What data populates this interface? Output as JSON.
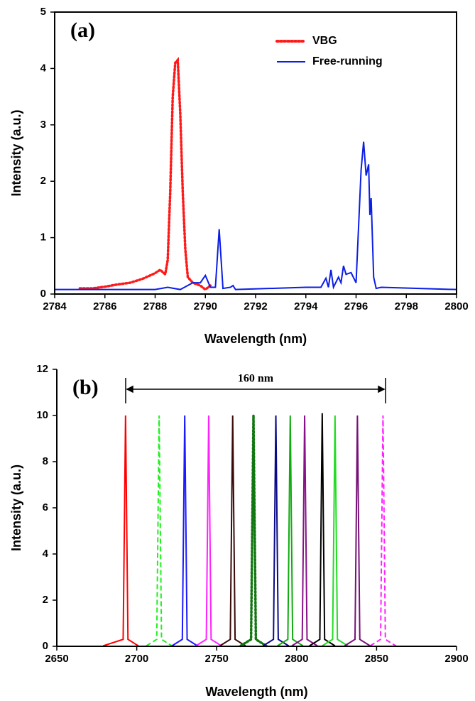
{
  "chart_data": [
    {
      "type": "line",
      "panel_label": "(a)",
      "xlabel": "Wavelength (nm)",
      "ylabel": "Intensity (a.u.)",
      "xlim": [
        2784,
        2800
      ],
      "xticks": [
        2784,
        2786,
        2788,
        2790,
        2792,
        2794,
        2796,
        2798,
        2800
      ],
      "ylim": [
        0,
        5
      ],
      "yticks": [
        0,
        1,
        2,
        3,
        4,
        5
      ],
      "box": true,
      "legend": "upper right",
      "series": [
        {
          "name": "VBG",
          "color": "#ff1a1a",
          "style": "dotted",
          "x": [
            2785,
            2785.5,
            2786,
            2786.5,
            2787,
            2787.5,
            2788,
            2788.2,
            2788.4,
            2788.5,
            2788.6,
            2788.7,
            2788.8,
            2788.9,
            2789.0,
            2789.1,
            2789.2,
            2789.3,
            2789.5,
            2789.8,
            2790,
            2790.2
          ],
          "values": [
            0.1,
            0.1,
            0.13,
            0.17,
            0.2,
            0.27,
            0.37,
            0.43,
            0.35,
            0.6,
            1.8,
            3.5,
            4.1,
            4.15,
            3.2,
            1.8,
            0.8,
            0.3,
            0.2,
            0.15,
            0.08,
            0.15
          ]
        },
        {
          "name": "Free-running",
          "color": "#0a1ee6",
          "style": "solid",
          "x": [
            2784,
            2788,
            2788.5,
            2789,
            2789.5,
            2789.8,
            2790,
            2790.2,
            2790.4,
            2790.55,
            2790.7,
            2791,
            2791.1,
            2791.2,
            2794,
            2794.6,
            2794.8,
            2794.9,
            2795,
            2795.1,
            2795.3,
            2795.4,
            2795.5,
            2795.6,
            2795.8,
            2796,
            2796.2,
            2796.3,
            2796.4,
            2796.5,
            2796.55,
            2796.6,
            2796.7,
            2796.8,
            2797,
            2800
          ],
          "values": [
            0.08,
            0.08,
            0.12,
            0.08,
            0.2,
            0.2,
            0.33,
            0.12,
            0.12,
            1.15,
            0.1,
            0.12,
            0.15,
            0.08,
            0.12,
            0.12,
            0.28,
            0.12,
            0.43,
            0.12,
            0.3,
            0.2,
            0.5,
            0.35,
            0.38,
            0.2,
            2.2,
            2.7,
            2.1,
            2.3,
            1.4,
            1.7,
            0.3,
            0.1,
            0.12,
            0.08
          ]
        }
      ]
    },
    {
      "type": "line",
      "panel_label": "(b)",
      "annotation": "160 nm",
      "xlabel": "Wavelength (nm)",
      "ylabel": "Intensity (a.u.)",
      "xlim": [
        2650,
        2900
      ],
      "xticks": [
        2650,
        2700,
        2750,
        2800,
        2850,
        2900
      ],
      "ylim": [
        0,
        12
      ],
      "yticks": [
        0,
        2,
        4,
        6,
        8,
        10,
        12
      ],
      "box": false,
      "series": [
        {
          "color": "#ff0000",
          "style": "solid",
          "x": [
            2679,
            2691.5,
            2693,
            2694.5,
            2701
          ],
          "values": [
            0.02,
            0.3,
            10,
            0.3,
            0.02
          ]
        },
        {
          "color": "#22ee22",
          "style": "dashed",
          "x": [
            2706,
            2712.5,
            2714,
            2715.5,
            2722
          ],
          "values": [
            0.02,
            0.3,
            10,
            0.3,
            0.02
          ]
        },
        {
          "color": "#1a1aff",
          "style": "solid",
          "x": [
            2722,
            2728.5,
            2730,
            2731.5,
            2738
          ],
          "values": [
            0.02,
            0.3,
            10,
            0.3,
            0.02
          ]
        },
        {
          "color": "#ff22ff",
          "style": "solid",
          "x": [
            2737,
            2743.5,
            2745,
            2746.5,
            2753
          ],
          "values": [
            0.02,
            0.3,
            10,
            0.3,
            0.02
          ]
        },
        {
          "color": "#3a0a0a",
          "style": "solid",
          "x": [
            2752,
            2758.5,
            2760,
            2761.5,
            2768
          ],
          "values": [
            0.02,
            0.3,
            10,
            0.3,
            0.02
          ]
        },
        {
          "color": "#117711",
          "style": "dotted",
          "x": [
            2765,
            2771.5,
            2773,
            2774.5,
            2781
          ],
          "values": [
            0.02,
            0.3,
            10,
            0.3,
            0.02
          ]
        },
        {
          "color": "#0a0a88",
          "style": "solid",
          "x": [
            2779,
            2785.5,
            2787,
            2788.5,
            2795
          ],
          "values": [
            0.02,
            0.3,
            10,
            0.3,
            0.02
          ]
        },
        {
          "color": "#11aa11",
          "style": "solid",
          "x": [
            2788,
            2794.5,
            2796,
            2797.5,
            2804
          ],
          "values": [
            0.02,
            0.3,
            10,
            0.3,
            0.02
          ]
        },
        {
          "color": "#881188",
          "style": "solid",
          "x": [
            2797,
            2803.5,
            2805,
            2806.5,
            2813
          ],
          "values": [
            0.02,
            0.3,
            10,
            0.3,
            0.02
          ]
        },
        {
          "color": "#000000",
          "style": "solid",
          "x": [
            2808,
            2814.5,
            2816,
            2817.5,
            2824
          ],
          "values": [
            0.02,
            0.3,
            10.1,
            0.3,
            0.02
          ]
        },
        {
          "color": "#22dd22",
          "style": "solid",
          "x": [
            2816,
            2822.5,
            2824,
            2825.5,
            2832
          ],
          "values": [
            0.02,
            0.3,
            10,
            0.3,
            0.02
          ]
        },
        {
          "color": "#771177",
          "style": "solid",
          "x": [
            2830,
            2836.5,
            2838,
            2839.5,
            2846
          ],
          "values": [
            0.02,
            0.3,
            10,
            0.3,
            0.02
          ]
        },
        {
          "color": "#ff22ff",
          "style": "dashed",
          "x": [
            2846,
            2852.5,
            2854,
            2855.5,
            2862
          ],
          "values": [
            0.02,
            0.3,
            10,
            0.3,
            0.02
          ]
        }
      ]
    }
  ]
}
